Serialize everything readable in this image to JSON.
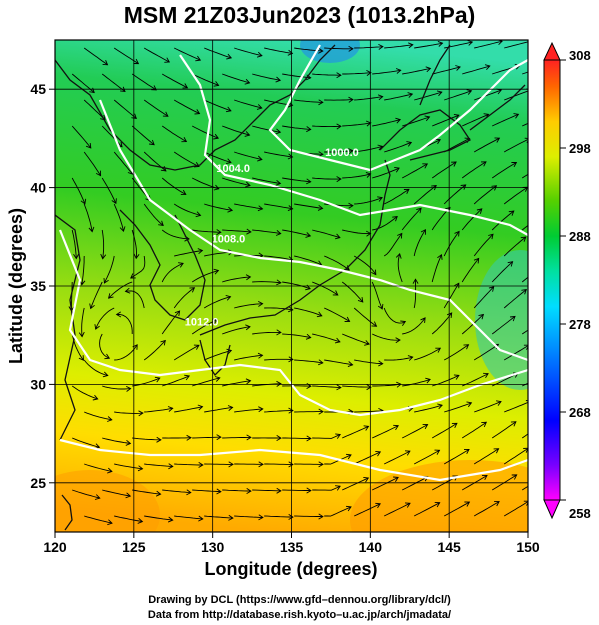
{
  "title": "MSM 21Z03Jun2023 (1013.2hPa)",
  "map": {
    "xlabel": "Longitude (degrees)",
    "ylabel": "Latitude  (degrees)",
    "xlim": [
      120,
      150
    ],
    "ylim": [
      22.5,
      47.5
    ],
    "xticks": [
      "120",
      "125",
      "130",
      "135",
      "140",
      "145",
      "150"
    ],
    "yticks": [
      "25",
      "30",
      "35",
      "40",
      "45"
    ],
    "grid": true,
    "contour_labels": [
      {
        "text": "1000.0",
        "lon": 138.2,
        "lat": 41.6
      },
      {
        "text": "1004.0",
        "lon": 131.3,
        "lat": 40.8
      },
      {
        "text": "1008.0",
        "lon": 131.0,
        "lat": 37.2
      },
      {
        "text": "1012.0",
        "lon": 129.3,
        "lat": 33.0
      }
    ],
    "field": "temperature (K) with surface wind streamlines"
  },
  "colorbar": {
    "ticks": [
      "308",
      "298",
      "288",
      "278",
      "268",
      "258"
    ],
    "range": [
      258,
      308
    ],
    "colors": [
      "#ff00ff",
      "#6600ff",
      "#0000ff",
      "#0066ff",
      "#00ccff",
      "#00e0c0",
      "#00cc44",
      "#33cc00",
      "#99dd00",
      "#ffff00",
      "#ffcc00",
      "#ff9900",
      "#ff5500",
      "#ff2222"
    ]
  },
  "credits": {
    "line1": "Drawing by DCL (https://www.gfd–dennou.org/library/dcl/)",
    "line2": "Data from http://database.rish.kyoto–u.ac.jp/arch/jmadata/"
  }
}
